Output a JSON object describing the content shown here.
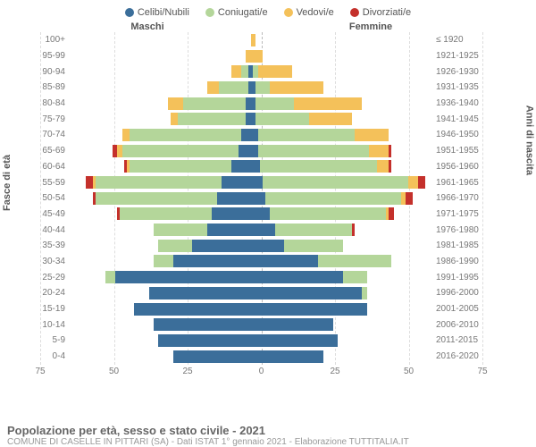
{
  "legend": [
    {
      "label": "Celibi/Nubili",
      "color": "#3b6e9a"
    },
    {
      "label": "Coniugati/e",
      "color": "#b4d69a"
    },
    {
      "label": "Vedovi/e",
      "color": "#f4c15a"
    },
    {
      "label": "Divorziati/e",
      "color": "#c4302b"
    }
  ],
  "header_male": "Maschi",
  "header_female": "Femmine",
  "y_left_title": "Fasce di età",
  "y_right_title": "Anni di nascita",
  "x_max": 75,
  "x_ticks": [
    75,
    50,
    25,
    0,
    25,
    50,
    75
  ],
  "footer_title": "Popolazione per età, sesso e stato civile - 2021",
  "footer_sub": "COMUNE DI CASELLE IN PITTARI (SA) - Dati ISTAT 1° gennaio 2021 - Elaborazione TUTTITALIA.IT",
  "rows": [
    {
      "age": "100+",
      "year": "≤ 1920",
      "m": {
        "c": 0,
        "g": 0,
        "v": 0,
        "d": 0
      },
      "f": {
        "c": 0,
        "g": 0,
        "v": 2,
        "d": 0
      }
    },
    {
      "age": "95-99",
      "year": "1921-1925",
      "m": {
        "c": 0,
        "g": 0,
        "v": 2,
        "d": 0
      },
      "f": {
        "c": 0,
        "g": 0,
        "v": 5,
        "d": 0
      }
    },
    {
      "age": "90-94",
      "year": "1926-1930",
      "m": {
        "c": 1,
        "g": 3,
        "v": 4,
        "d": 0
      },
      "f": {
        "c": 1,
        "g": 2,
        "v": 14,
        "d": 0
      }
    },
    {
      "age": "85-89",
      "year": "1931-1935",
      "m": {
        "c": 1,
        "g": 12,
        "v": 5,
        "d": 0
      },
      "f": {
        "c": 2,
        "g": 6,
        "v": 22,
        "d": 0
      }
    },
    {
      "age": "80-84",
      "year": "1936-1940",
      "m": {
        "c": 2,
        "g": 26,
        "v": 6,
        "d": 0
      },
      "f": {
        "c": 2,
        "g": 16,
        "v": 28,
        "d": 0
      }
    },
    {
      "age": "75-79",
      "year": "1941-1945",
      "m": {
        "c": 2,
        "g": 28,
        "v": 3,
        "d": 0
      },
      "f": {
        "c": 2,
        "g": 22,
        "v": 18,
        "d": 0
      }
    },
    {
      "age": "70-74",
      "year": "1946-1950",
      "m": {
        "c": 4,
        "g": 46,
        "v": 3,
        "d": 0
      },
      "f": {
        "c": 3,
        "g": 40,
        "v": 14,
        "d": 0
      }
    },
    {
      "age": "65-69",
      "year": "1951-1955",
      "m": {
        "c": 5,
        "g": 48,
        "v": 2,
        "d": 2
      },
      "f": {
        "c": 3,
        "g": 46,
        "v": 8,
        "d": 1
      }
    },
    {
      "age": "60-64",
      "year": "1956-1960",
      "m": {
        "c": 8,
        "g": 42,
        "v": 1,
        "d": 1
      },
      "f": {
        "c": 4,
        "g": 48,
        "v": 5,
        "d": 1
      }
    },
    {
      "age": "55-59",
      "year": "1961-1965",
      "m": {
        "c": 12,
        "g": 52,
        "v": 1,
        "d": 3
      },
      "f": {
        "c": 5,
        "g": 60,
        "v": 4,
        "d": 3
      }
    },
    {
      "age": "50-54",
      "year": "1966-1970",
      "m": {
        "c": 14,
        "g": 50,
        "v": 0,
        "d": 1
      },
      "f": {
        "c": 6,
        "g": 56,
        "v": 2,
        "d": 3
      }
    },
    {
      "age": "45-49",
      "year": "1971-1975",
      "m": {
        "c": 16,
        "g": 38,
        "v": 0,
        "d": 1
      },
      "f": {
        "c": 8,
        "g": 48,
        "v": 1,
        "d": 2
      }
    },
    {
      "age": "40-44",
      "year": "1976-1980",
      "m": {
        "c": 18,
        "g": 22,
        "v": 0,
        "d": 0
      },
      "f": {
        "c": 10,
        "g": 32,
        "v": 0,
        "d": 1
      }
    },
    {
      "age": "35-39",
      "year": "1981-1985",
      "m": {
        "c": 24,
        "g": 14,
        "v": 0,
        "d": 0
      },
      "f": {
        "c": 14,
        "g": 24,
        "v": 0,
        "d": 0
      }
    },
    {
      "age": "30-34",
      "year": "1986-1990",
      "m": {
        "c": 32,
        "g": 8,
        "v": 0,
        "d": 0
      },
      "f": {
        "c": 28,
        "g": 30,
        "v": 0,
        "d": 0
      }
    },
    {
      "age": "25-29",
      "year": "1991-1995",
      "m": {
        "c": 56,
        "g": 4,
        "v": 0,
        "d": 0
      },
      "f": {
        "c": 38,
        "g": 10,
        "v": 0,
        "d": 0
      }
    },
    {
      "age": "20-24",
      "year": "1996-2000",
      "m": {
        "c": 42,
        "g": 0,
        "v": 0,
        "d": 0
      },
      "f": {
        "c": 46,
        "g": 2,
        "v": 0,
        "d": 0
      }
    },
    {
      "age": "15-19",
      "year": "2001-2005",
      "m": {
        "c": 48,
        "g": 0,
        "v": 0,
        "d": 0
      },
      "f": {
        "c": 48,
        "g": 0,
        "v": 0,
        "d": 0
      }
    },
    {
      "age": "10-14",
      "year": "2006-2010",
      "m": {
        "c": 40,
        "g": 0,
        "v": 0,
        "d": 0
      },
      "f": {
        "c": 34,
        "g": 0,
        "v": 0,
        "d": 0
      }
    },
    {
      "age": "5-9",
      "year": "2011-2015",
      "m": {
        "c": 38,
        "g": 0,
        "v": 0,
        "d": 0
      },
      "f": {
        "c": 36,
        "g": 0,
        "v": 0,
        "d": 0
      }
    },
    {
      "age": "0-4",
      "year": "2016-2020",
      "m": {
        "c": 32,
        "g": 0,
        "v": 0,
        "d": 0
      },
      "f": {
        "c": 30,
        "g": 0,
        "v": 0,
        "d": 0
      }
    }
  ],
  "colors": {
    "c": "#3b6e9a",
    "g": "#b4d69a",
    "v": "#f4c15a",
    "d": "#c4302b"
  }
}
